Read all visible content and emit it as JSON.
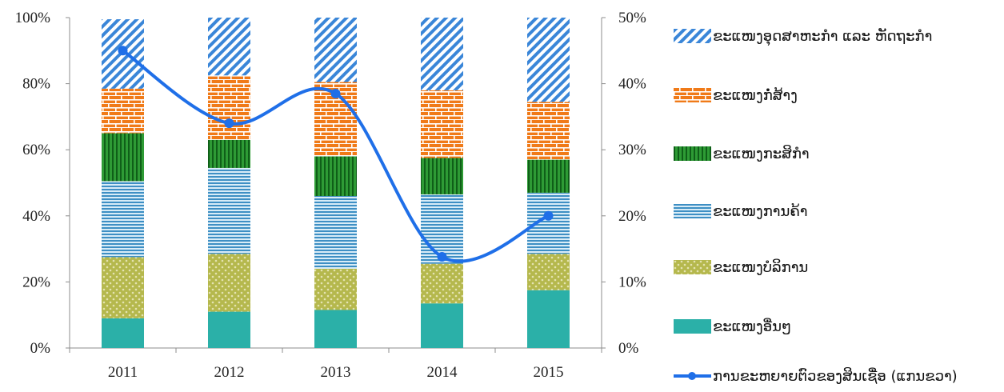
{
  "chart_data": {
    "type": "bar",
    "stacked": true,
    "categories": [
      "2011",
      "2012",
      "2013",
      "2014",
      "2015"
    ],
    "left_axis": {
      "ticks": [
        "0%",
        "20%",
        "40%",
        "60%",
        "80%",
        "100%"
      ],
      "ylim": [
        0,
        100
      ]
    },
    "right_axis": {
      "ticks": [
        "0%",
        "10%",
        "20%",
        "30%",
        "40%",
        "50%"
      ],
      "ylim": [
        0,
        50
      ]
    },
    "grid": false,
    "legend_position": "right",
    "series": [
      {
        "name": "ຂະແໜງອື່ນໆ",
        "values": [
          9,
          11,
          11.5,
          13.5,
          17.5
        ],
        "color": "#2bb0a8",
        "pattern": "solid"
      },
      {
        "name": "ຂະແໜງບໍລິການ",
        "values": [
          18.5,
          17.5,
          12.5,
          12,
          11
        ],
        "color": "#b5b84d",
        "pattern": "dots"
      },
      {
        "name": "ຂະແໜງການຄ້າ",
        "values": [
          23,
          26,
          22,
          21,
          18.5
        ],
        "color": "#3e8fc4",
        "pattern": "hstripes"
      },
      {
        "name": "ຂະແໜງກະສິກຳ",
        "values": [
          14.5,
          8.5,
          12,
          11,
          10
        ],
        "color": "#2e9b35",
        "pattern": "vstripes"
      },
      {
        "name": "ຂະແໜງກໍ່ສ້າງ",
        "values": [
          13.5,
          19.5,
          22.5,
          20.5,
          17.5
        ],
        "color": "#f07a18",
        "pattern": "bricks"
      },
      {
        "name": "ຂະແໜງອຸດສາຫະກຳ ແລະ ຫັດຖະກຳ",
        "values": [
          21,
          17.5,
          19.5,
          22,
          25.5
        ],
        "color": "#3a86d8",
        "pattern": "diagonal"
      }
    ],
    "line_series": {
      "name": "ການຂະຫຍາຍຕົວຂອງສິນເຊື່ອ (ແກນຂວາ)",
      "axis": "right",
      "values": [
        45,
        34,
        38.5,
        13.8,
        20
      ],
      "color": "#1f6fe8"
    }
  }
}
